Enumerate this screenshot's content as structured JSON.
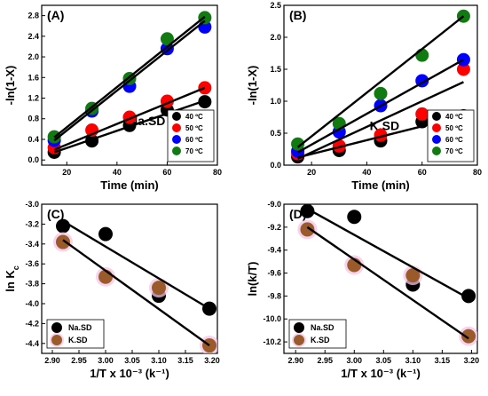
{
  "chart_data": [
    {
      "panel": "(A)",
      "type": "scatter",
      "sample_label": "Na.SD",
      "xlabel": "Time (min)",
      "ylabel": "-ln(1-X)",
      "xlim": [
        10,
        80
      ],
      "ylim": [
        -0.1,
        3.0
      ],
      "xticks": [
        20,
        40,
        60,
        80
      ],
      "yticks": [
        0.0,
        0.4,
        0.8,
        1.2,
        1.6,
        2.0,
        2.4,
        2.8
      ],
      "ytick_decimals": 1,
      "legend_position": "bottom-right",
      "series": [
        {
          "name": "40 ºC",
          "color": "#000000",
          "x": [
            15,
            30,
            45,
            60,
            75
          ],
          "y": [
            0.15,
            0.37,
            0.67,
            0.97,
            1.13
          ],
          "fit": [
            [
              15,
              0.15
            ],
            [
              75,
              1.15
            ]
          ]
        },
        {
          "name": "50 ºC",
          "color": "#ff0000",
          "x": [
            15,
            30,
            45,
            60,
            75
          ],
          "y": [
            0.24,
            0.58,
            0.83,
            1.14,
            1.4
          ],
          "fit": [
            [
              15,
              0.2
            ],
            [
              75,
              1.4
            ]
          ]
        },
        {
          "name": "60 ºC",
          "color": "#0000ff",
          "x": [
            15,
            30,
            45,
            60,
            75
          ],
          "y": [
            0.38,
            0.95,
            1.43,
            2.16,
            2.58
          ],
          "fit": [
            [
              15,
              0.38
            ],
            [
              75,
              2.7
            ]
          ]
        },
        {
          "name": "70 ºC",
          "color": "#117a11",
          "x": [
            15,
            30,
            45,
            60,
            75
          ],
          "y": [
            0.45,
            1.0,
            1.58,
            2.35,
            2.76
          ],
          "fit": [
            [
              15,
              0.44
            ],
            [
              75,
              2.78
            ]
          ]
        }
      ]
    },
    {
      "panel": "(B)",
      "type": "scatter",
      "sample_label": "K.SD",
      "xlabel": "Time (min)",
      "ylabel": "-ln(1-X)",
      "xlim": [
        10,
        80
      ],
      "ylim": [
        0.0,
        2.5
      ],
      "xticks": [
        20,
        40,
        60,
        80
      ],
      "yticks": [
        0.0,
        0.5,
        1.0,
        1.5,
        2.0,
        2.5
      ],
      "ytick_decimals": 1,
      "legend_position": "bottom-right",
      "series": [
        {
          "name": "40 ºC",
          "color": "#000000",
          "x": [
            15,
            30,
            45,
            60,
            75
          ],
          "y": [
            0.13,
            0.23,
            0.38,
            0.68,
            0.77
          ],
          "fit": [
            [
              15,
              0.12
            ],
            [
              75,
              0.77
            ]
          ]
        },
        {
          "name": "50 ºC",
          "color": "#ff0000",
          "x": [
            15,
            30,
            45,
            60,
            75
          ],
          "y": [
            0.18,
            0.3,
            0.47,
            0.8,
            1.5
          ],
          "fit": [
            [
              15,
              0.1
            ],
            [
              75,
              1.3
            ]
          ]
        },
        {
          "name": "60 ºC",
          "color": "#0000ff",
          "x": [
            15,
            30,
            45,
            60,
            75
          ],
          "y": [
            0.22,
            0.52,
            0.93,
            1.32,
            1.65
          ],
          "fit": [
            [
              15,
              0.2
            ],
            [
              75,
              1.65
            ]
          ]
        },
        {
          "name": "70 ºC",
          "color": "#117a11",
          "x": [
            15,
            30,
            45,
            60,
            75
          ],
          "y": [
            0.33,
            0.65,
            1.12,
            1.72,
            2.33
          ],
          "fit": [
            [
              15,
              0.28
            ],
            [
              75,
              2.33
            ]
          ]
        }
      ]
    },
    {
      "panel": "(C)",
      "type": "scatter",
      "xlabel": "1/T x 10⁻³ (k⁻¹)",
      "ylabel": "ln K",
      "ylabel_sub": "c",
      "xlim": [
        2.88,
        3.21
      ],
      "ylim": [
        -4.5,
        -3.0
      ],
      "xticks": [
        2.9,
        2.95,
        3.0,
        3.05,
        3.1,
        3.15,
        3.2
      ],
      "yticks": [
        -4.4,
        -4.2,
        -4.0,
        -3.8,
        -3.6,
        -3.4,
        -3.2,
        -3.0
      ],
      "xtick_decimals": 2,
      "ytick_decimals": 1,
      "legend_position": "bottom-left",
      "series": [
        {
          "name": "Na.SD",
          "color": "#000000",
          "x": [
            2.92,
            3.0,
            3.1,
            3.195
          ],
          "y": [
            -3.22,
            -3.3,
            -3.92,
            -4.05
          ],
          "fit": [
            [
              2.92,
              -3.17
            ],
            [
              3.195,
              -4.05
            ]
          ]
        },
        {
          "name": "K.SD",
          "color": "#9b5a2a",
          "halo": "#f4c6e6",
          "x": [
            2.92,
            3.0,
            3.1,
            3.195
          ],
          "y": [
            -3.38,
            -3.73,
            -3.84,
            -4.42
          ],
          "fit": [
            [
              2.92,
              -3.36
            ],
            [
              3.195,
              -4.42
            ]
          ]
        }
      ]
    },
    {
      "panel": "(D)",
      "type": "scatter",
      "xlabel": "1/T x 10⁻³ (k⁻¹)",
      "ylabel": "ln(k/T)",
      "xlim": [
        2.88,
        3.21
      ],
      "ylim": [
        -10.3,
        -9.0
      ],
      "xticks": [
        2.9,
        2.95,
        3.0,
        3.05,
        3.1,
        3.15,
        3.2
      ],
      "yticks": [
        -10.2,
        -10.0,
        -9.8,
        -9.6,
        -9.4,
        -9.2,
        -9.0
      ],
      "xtick_decimals": 2,
      "ytick_decimals": 1,
      "legend_position": "bottom-left",
      "series": [
        {
          "name": "Na.SD",
          "color": "#000000",
          "x": [
            2.92,
            3.0,
            3.1,
            3.195
          ],
          "y": [
            -9.06,
            -9.11,
            -9.7,
            -9.8
          ],
          "fit": [
            [
              2.92,
              -9.04
            ],
            [
              3.195,
              -9.82
            ]
          ]
        },
        {
          "name": "K.SD",
          "color": "#9b5a2a",
          "halo": "#f4c6e6",
          "x": [
            2.92,
            3.0,
            3.1,
            3.195
          ],
          "y": [
            -9.22,
            -9.53,
            -9.62,
            -10.15
          ],
          "fit": [
            [
              2.92,
              -9.2
            ],
            [
              3.195,
              -10.17
            ]
          ]
        }
      ]
    }
  ]
}
